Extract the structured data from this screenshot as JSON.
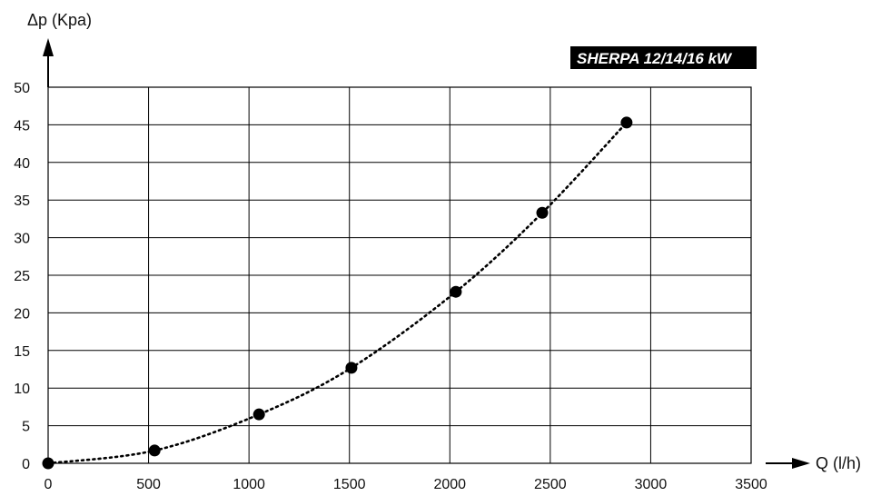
{
  "chart_data": {
    "type": "scatter",
    "title": "SHERPA 12/14/16 kW",
    "xlabel": "Q (l/h)",
    "ylabel": "Δp (Kpa)",
    "xlim": [
      0,
      3500
    ],
    "ylim": [
      0,
      50
    ],
    "xticks": [
      "0",
      "500",
      "1000",
      "1500",
      "2000",
      "2500",
      "3000",
      "3500"
    ],
    "yticks": [
      "0",
      "5",
      "10",
      "15",
      "20",
      "25",
      "30",
      "35",
      "40",
      "45",
      "50"
    ],
    "grid": true,
    "series": [
      {
        "points": [
          {
            "x": 0,
            "y": 0
          },
          {
            "x": 530,
            "y": 1.7
          },
          {
            "x": 1050,
            "y": 6.5
          },
          {
            "x": 1510,
            "y": 12.7
          },
          {
            "x": 2030,
            "y": 22.8
          },
          {
            "x": 2460,
            "y": 33.3
          },
          {
            "x": 2880,
            "y": 45.3
          }
        ],
        "line_style": "dotted",
        "marker": "filled-circle",
        "color": "#000000"
      }
    ]
  }
}
